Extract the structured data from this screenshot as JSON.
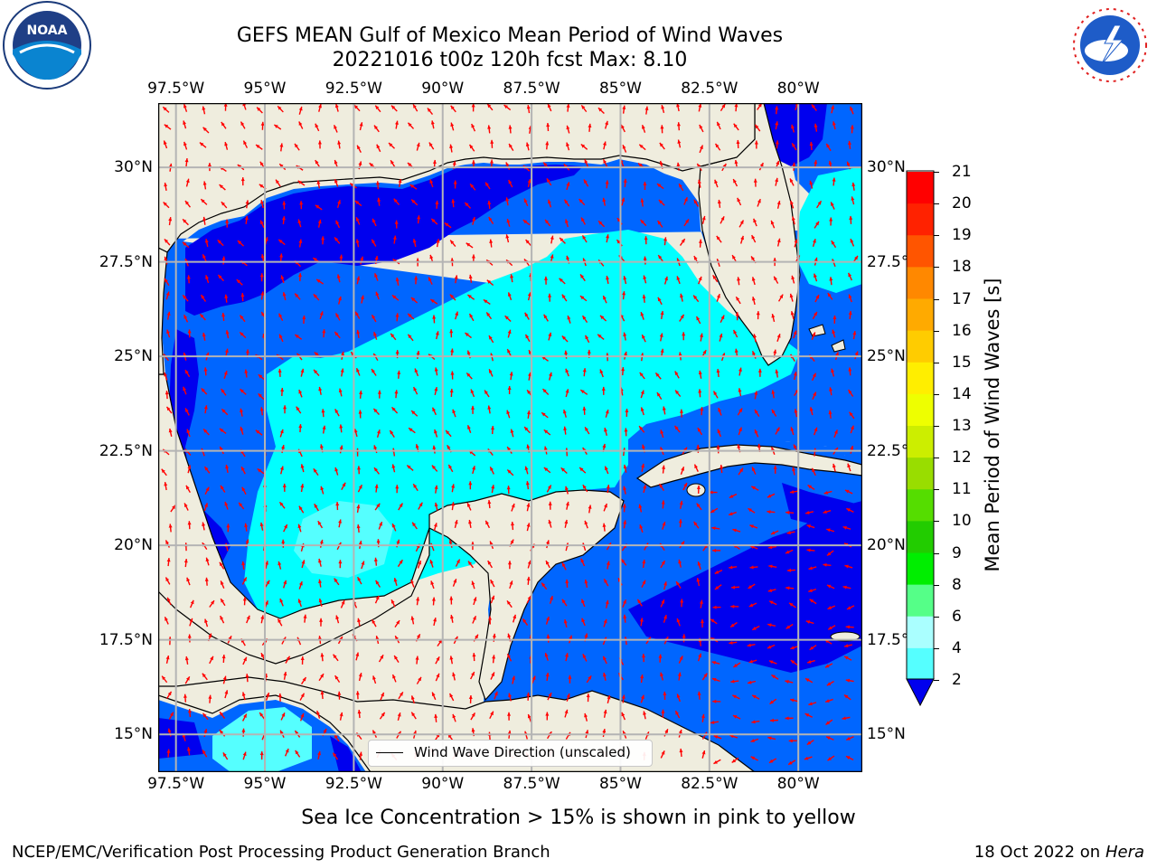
{
  "title": {
    "line1": "GEFS MEAN Gulf of Mexico Mean Period of Wind Waves",
    "line2": "20221016 t00z 120h fcst   Max: 8.10"
  },
  "axes": {
    "lon_labels": [
      "97.5°W",
      "95°W",
      "92.5°W",
      "90°W",
      "87.5°W",
      "85°W",
      "82.5°W",
      "80°W"
    ],
    "lon_values": [
      -97.5,
      -95,
      -92.5,
      -90,
      -87.5,
      -85,
      -82.5,
      -80
    ],
    "lat_labels": [
      "30°N",
      "27.5°N",
      "25°N",
      "22.5°N",
      "20°N",
      "17.5°N",
      "15°N"
    ],
    "lat_values": [
      30,
      27.5,
      25,
      22.5,
      20,
      17.5,
      15
    ],
    "lon_range": [
      -98,
      -78.2
    ],
    "lat_range": [
      14,
      31.7
    ]
  },
  "legend": {
    "label": "Wind Wave Direction (unscaled)",
    "arrow_color": "#ff0000"
  },
  "colorbar": {
    "label": "Mean Period of Wind Waves [s]",
    "ticks": [
      "21",
      "20",
      "19",
      "18",
      "17",
      "16",
      "15",
      "14",
      "13",
      "12",
      "11",
      "10",
      "9",
      "8",
      "6",
      "4",
      "2"
    ],
    "colors": [
      "#0000ee",
      "#0066ff",
      "#00ccff",
      "#00ffff",
      "#55ffff",
      "#aaffff",
      "#55ff88",
      "#33dd33",
      "#22bb00",
      "#44cc00",
      "#99dd00",
      "#ccee00",
      "#eeff00",
      "#ffee00",
      "#ffbb00",
      "#ff8800",
      "#ff5500",
      "#ff2200",
      "#ff0000"
    ]
  },
  "colors": {
    "land": "#efedde",
    "coast": "#000000",
    "grid": "#b4b4b4",
    "arrows": "#ff0000",
    "period_2_4": "#0066ff",
    "period_lt_2": "#0000ee",
    "period_4_6": "#00ffff",
    "period_6_8": "#55ffff"
  },
  "footer": {
    "ice_note": "Sea Ice Concentration > 15% is shown in pink to yellow",
    "branch": "NCEP/EMC/Verification Post Processing Product Generation Branch",
    "date": "18 Oct 2022 on",
    "machine": "Hera"
  },
  "logos": {
    "left": "NOAA",
    "right": "NATIONAL WEATHER SERVICE"
  }
}
